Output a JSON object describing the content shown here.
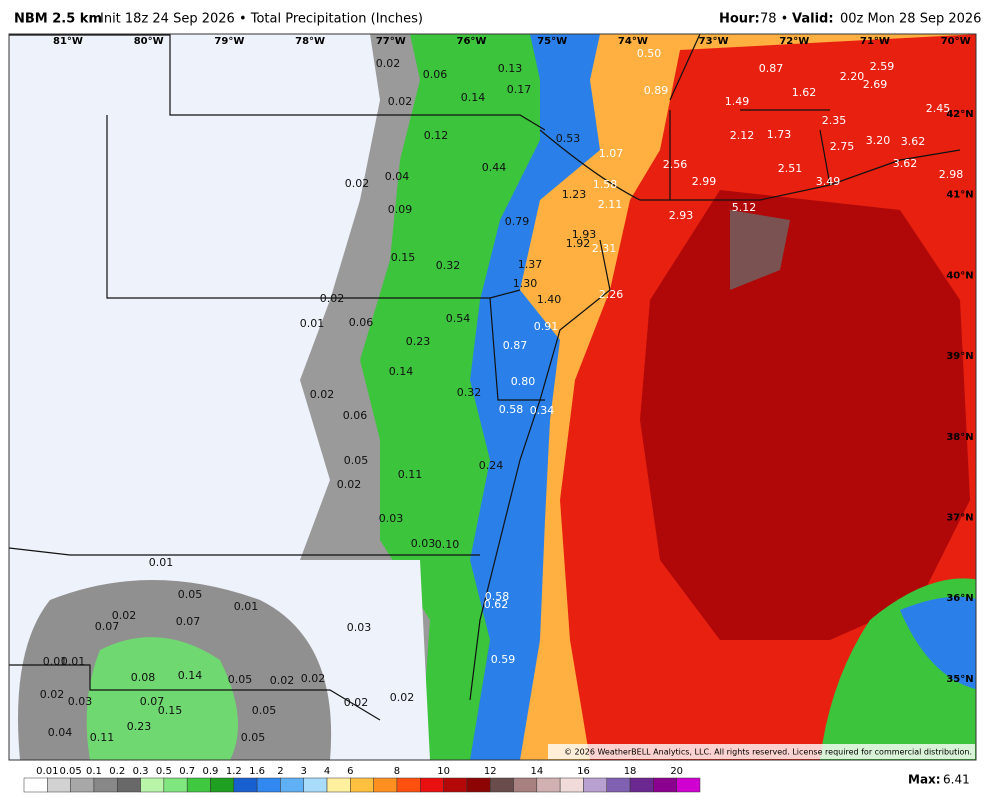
{
  "header": {
    "left_bold": "NBM 2.5 km",
    "left": "Init 18z 24 Sep 2026 • Total Precipitation (Inches)",
    "right_bold1": "Hour:",
    "right1": "78 •",
    "right_bold2": "Valid:",
    "right2": "00z Mon 28 Sep 2026"
  },
  "longitudes": [
    "81°W",
    "80°W",
    "79°W",
    "78°W",
    "77°W",
    "76°W",
    "75°W",
    "74°W",
    "73°W",
    "72°W",
    "71°W",
    "70°W"
  ],
  "latitudes": [
    "42°N",
    "41°N",
    "40°N",
    "39°N",
    "38°N",
    "37°N",
    "36°N",
    "35°N"
  ],
  "map_labels": [
    "0.02",
    "0.06",
    "0.13",
    "0.17",
    "0.14",
    "0.02",
    "0.50",
    "0.87",
    "0.89",
    "1.49",
    "1.62",
    "2.20",
    "2.59",
    "2.69",
    "2.45",
    "0.12",
    "0.53",
    "1.07",
    "2.12",
    "1.73",
    "2.35",
    "2.75",
    "3.20",
    "3.62",
    "3.62",
    "2.98",
    "0.44",
    "2.56",
    "2.51",
    "3.49",
    "2.99",
    "0.04",
    "0.02",
    "1.23",
    "1.58",
    "2.11",
    "5.12",
    "2.93",
    "0.09",
    "0.79",
    "1.93",
    "1.92",
    "2.31",
    "0.15",
    "0.32",
    "1.37",
    "1.30",
    "1.40",
    "2.26",
    "0.02",
    "0.06",
    "0.01",
    "0.54",
    "0.91",
    "0.23",
    "0.87",
    "0.14",
    "0.80",
    "0.02",
    "0.32",
    "0.58",
    "0.34",
    "0.06",
    "0.05",
    "0.24",
    "0.11",
    "0.02",
    "0.03",
    "0.03",
    "0.10",
    "0.01",
    "0.05",
    "0.58",
    "0.62",
    "0.01",
    "0.02",
    "0.07",
    "0.07",
    "0.03",
    "0.59",
    "0.01",
    "0.01",
    "0.14",
    "0.08",
    "0.05",
    "0.02",
    "0.02",
    "0.02",
    "0.03",
    "0.07",
    "0.15",
    "0.02",
    "0.02",
    "0.05",
    "0.23",
    "0.04",
    "0.11",
    "0.05"
  ],
  "copyright": "© 2026 WeatherBELL Analytics, LLC. All rights reserved. License required for commercial distribution.",
  "legend": {
    "labels": [
      "0.01",
      "0.05",
      "0.1",
      "0.2",
      "0.3",
      "0.5",
      "0.7",
      "0.9",
      "1.2",
      "1.6",
      "2",
      "3",
      "4",
      "6",
      "8",
      "10",
      "12",
      "14",
      "16",
      "18",
      "20"
    ],
    "colors": [
      "#ffffff",
      "#d2d2d2",
      "#a8a8a8",
      "#888888",
      "#686868",
      "#b8f5a8",
      "#80e680",
      "#40c840",
      "#20a020",
      "#1860d0",
      "#3088f0",
      "#60b0f5",
      "#a8dcfa",
      "#fff0a0",
      "#ffc040",
      "#ff9020",
      "#ff5010",
      "#e81010",
      "#b40808",
      "#8c0404",
      "#6a4c4c",
      "#a88080",
      "#d0b0b0",
      "#f0dada",
      "#b8a0d0",
      "#8060b0",
      "#6a2890",
      "#8c0090",
      "#d000d0"
    ]
  },
  "max_label": "Max:",
  "max_value": "6.41"
}
